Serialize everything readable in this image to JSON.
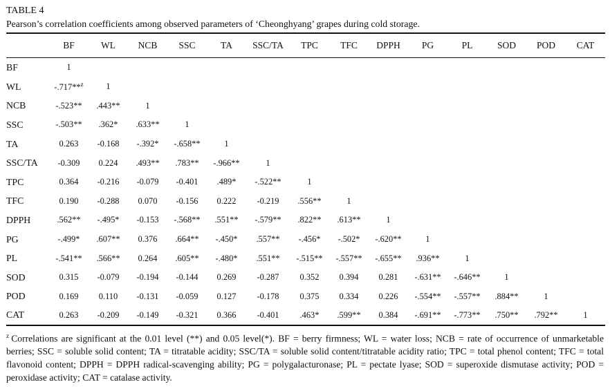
{
  "table": {
    "number": "TABLE 4",
    "caption": "Pearson’s correlation coefficients among observed parameters of ‘Cheonghyang’ grapes during cold storage.",
    "columns": [
      "",
      "BF",
      "WL",
      "NCB",
      "SSC",
      "TA",
      "SSC/TA",
      "TPC",
      "TFC",
      "DPPH",
      "PG",
      "PL",
      "SOD",
      "POD",
      "CAT"
    ],
    "rows": [
      {
        "label": "BF",
        "values": [
          "1"
        ]
      },
      {
        "label": "WL",
        "values": [
          "-.717**^z",
          "1"
        ]
      },
      {
        "label": "NCB",
        "values": [
          "-.523**",
          ".443**",
          "1"
        ]
      },
      {
        "label": "SSC",
        "values": [
          "-.503**",
          ".362*",
          ".633**",
          "1"
        ]
      },
      {
        "label": "TA",
        "values": [
          "0.263",
          "-0.168",
          "-.392*",
          "-.658**",
          "1"
        ]
      },
      {
        "label": "SSC/TA",
        "values": [
          "-0.309",
          "0.224",
          ".493**",
          ".783**",
          "-.966**",
          "1"
        ]
      },
      {
        "label": "TPC",
        "values": [
          "0.364",
          "-0.216",
          "-0.079",
          "-0.401",
          ".489*",
          "-.522**",
          "1"
        ]
      },
      {
        "label": "TFC",
        "values": [
          "0.190",
          "-0.288",
          "0.070",
          "-0.156",
          "0.222",
          "-0.219",
          ".556**",
          "1"
        ]
      },
      {
        "label": "DPPH",
        "values": [
          ".562**",
          "-.495*",
          "-0.153",
          "-.568**",
          ".551**",
          "-.579**",
          ".822**",
          ".613**",
          "1"
        ]
      },
      {
        "label": "PG",
        "values": [
          "-.499*",
          ".607**",
          "0.376",
          ".664**",
          "-.450*",
          ".557**",
          "-.456*",
          "-.502*",
          "-.620**",
          "1"
        ]
      },
      {
        "label": "PL",
        "values": [
          "-.541**",
          ".566**",
          "0.264",
          ".605**",
          "-.480*",
          ".551**",
          "-.515**",
          "-.557**",
          "-.655**",
          ".936**",
          "1"
        ]
      },
      {
        "label": "SOD",
        "values": [
          "0.315",
          "-0.079",
          "-0.194",
          "-0.144",
          "0.269",
          "-0.287",
          "0.352",
          "0.394",
          "0.281",
          "-.631**",
          "-.646**",
          "1"
        ]
      },
      {
        "label": "POD",
        "values": [
          "0.169",
          "0.110",
          "-0.131",
          "-0.059",
          "0.127",
          "-0.178",
          "0.375",
          "0.334",
          "0.226",
          "-.554**",
          "-.557**",
          ".884**",
          "1"
        ]
      },
      {
        "label": "CAT",
        "values": [
          "0.263",
          "-0.209",
          "-0.149",
          "-0.321",
          "0.366",
          "-0.401",
          ".463*",
          ".599**",
          "0.384",
          "-.691**",
          "-.773**",
          ".750**",
          ".792**",
          "1"
        ]
      }
    ]
  },
  "footnote": {
    "marker": "z",
    "text": "Correlations are significant at the 0.01 level (**) and 0.05 level(*). BF = berry firmness; WL = water loss; NCB = rate of occurrence of unmarketable berries; SSC = soluble solid content; TA = titratable acidity; SSC/TA = soluble solid content/titratable acidity ratio; TPC = total phenol content; TFC = total flavonoid content; DPPH = DPPH radical-scavenging ability; PG = polygalacturonase; PL = pectate lyase; SOD = superoxide dismutase activity; POD = peroxidase activity; CAT = catalase activity."
  }
}
